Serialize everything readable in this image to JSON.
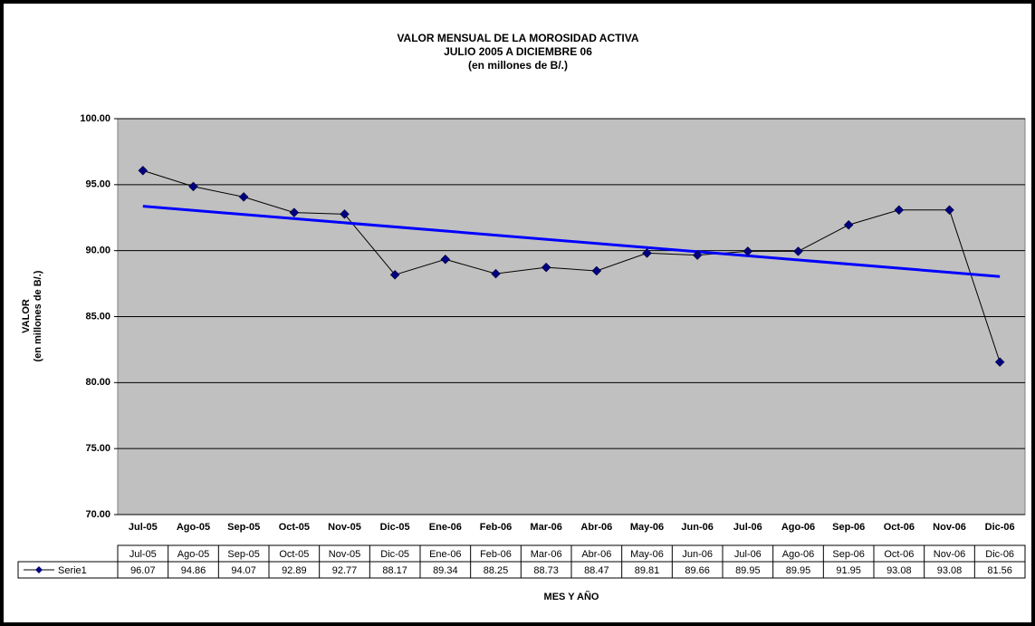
{
  "chart_data": {
    "type": "line",
    "title": "VALOR MENSUAL DE LA MOROSIDAD  ACTIVA",
    "subtitle": [
      "JULIO 2005 A DICIEMBRE 06",
      "(en millones de B/.)"
    ],
    "y_label": [
      "VALOR",
      "(en millones de B/.)"
    ],
    "x_label": "MES Y AÑO",
    "categories": [
      "Jul-05",
      "Ago-05",
      "Sep-05",
      "Oct-05",
      "Nov-05",
      "Dic-05",
      "Ene-06",
      "Feb-06",
      "Mar-06",
      "Abr-06",
      "May-06",
      "Jun-06",
      "Jul-06",
      "Ago-06",
      "Sep-06",
      "Oct-06",
      "Nov-06",
      "Dic-06"
    ],
    "series": [
      {
        "name": "Serie1",
        "color": "#000000",
        "marker_color": "#000080",
        "values": [
          96.07,
          94.86,
          94.07,
          92.89,
          92.77,
          88.17,
          89.34,
          88.25,
          88.73,
          88.47,
          89.81,
          89.66,
          89.95,
          89.95,
          91.95,
          93.08,
          93.08,
          81.56
        ]
      }
    ],
    "trendline": {
      "type": "linear",
      "color": "#0000ff"
    },
    "ylim": [
      70,
      100
    ],
    "yticks": [
      {
        "value": 70,
        "label": "70.00"
      },
      {
        "value": 75,
        "label": "75.00"
      },
      {
        "value": 80,
        "label": "80.00"
      },
      {
        "value": 85,
        "label": "85.00"
      },
      {
        "value": 90,
        "label": "90.00"
      },
      {
        "value": 95,
        "label": "95.00"
      },
      {
        "value": 100,
        "label": "100.00"
      }
    ],
    "grid": true,
    "plot_background": "#c0c0c0",
    "data_table": true
  }
}
